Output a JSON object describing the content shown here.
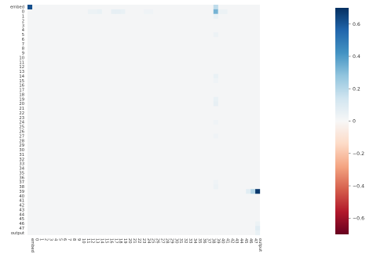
{
  "chart_data": {
    "type": "heatmap",
    "title": "",
    "xlabel": "",
    "ylabel": "",
    "rows": [
      "embed",
      "0",
      "1",
      "2",
      "3",
      "4",
      "5",
      "6",
      "7",
      "8",
      "9",
      "10",
      "11",
      "12",
      "13",
      "14",
      "15",
      "16",
      "17",
      "18",
      "19",
      "20",
      "21",
      "22",
      "23",
      "24",
      "25",
      "26",
      "27",
      "28",
      "29",
      "30",
      "31",
      "32",
      "33",
      "34",
      "35",
      "36",
      "37",
      "38",
      "39",
      "40",
      "41",
      "42",
      "43",
      "44",
      "45",
      "46",
      "47",
      "output"
    ],
    "columns": [
      "embed",
      "0",
      "1",
      "2",
      "3",
      "4",
      "5",
      "6",
      "7",
      "8",
      "9",
      "10",
      "11",
      "12",
      "13",
      "14",
      "15",
      "16",
      "17",
      "18",
      "19",
      "20",
      "21",
      "22",
      "23",
      "24",
      "25",
      "26",
      "27",
      "28",
      "29",
      "30",
      "31",
      "32",
      "33",
      "34",
      "35",
      "36",
      "37",
      "38",
      "39",
      "40",
      "41",
      "42",
      "43",
      "44",
      "45",
      "46",
      "47",
      "output"
    ],
    "colorscale": "RdBu",
    "zlim": [
      -0.7,
      0.7
    ],
    "colorbar_ticks": [
      0.6,
      0.4,
      0.2,
      0,
      -0.2,
      -0.4,
      -0.6
    ],
    "colorbar_tick_labels": [
      "0.6",
      "0.4",
      "0.2",
      "0",
      "−0.2",
      "−0.4",
      "−0.6"
    ],
    "background_value": 0.012,
    "cells": [
      {
        "row": "embed",
        "col": "embed",
        "value": 0.62
      },
      {
        "row": "embed",
        "col": "39",
        "value": 0.18
      },
      {
        "row": "0",
        "col": "39",
        "value": 0.33
      },
      {
        "row": "0",
        "col": "12",
        "value": 0.04
      },
      {
        "row": "0",
        "col": "13",
        "value": 0.04
      },
      {
        "row": "0",
        "col": "14",
        "value": 0.05
      },
      {
        "row": "0",
        "col": "17",
        "value": 0.06
      },
      {
        "row": "0",
        "col": "18",
        "value": 0.06
      },
      {
        "row": "0",
        "col": "19",
        "value": 0.05
      },
      {
        "row": "0",
        "col": "24",
        "value": 0.03
      },
      {
        "row": "0",
        "col": "25",
        "value": 0.03
      },
      {
        "row": "0",
        "col": "40",
        "value": 0.04
      },
      {
        "row": "0",
        "col": "41",
        "value": 0.04
      },
      {
        "row": "1",
        "col": "39",
        "value": 0.05
      },
      {
        "row": "5",
        "col": "39",
        "value": 0.04
      },
      {
        "row": "14",
        "col": "39",
        "value": 0.05
      },
      {
        "row": "15",
        "col": "39",
        "value": 0.03
      },
      {
        "row": "19",
        "col": "39",
        "value": 0.05
      },
      {
        "row": "20",
        "col": "39",
        "value": 0.06
      },
      {
        "row": "24",
        "col": "39",
        "value": 0.03
      },
      {
        "row": "27",
        "col": "39",
        "value": 0.03
      },
      {
        "row": "37",
        "col": "39",
        "value": 0.03
      },
      {
        "row": "38",
        "col": "39",
        "value": 0.04
      },
      {
        "row": "39",
        "col": "46",
        "value": 0.08
      },
      {
        "row": "39",
        "col": "47",
        "value": 0.2
      },
      {
        "row": "39",
        "col": "output",
        "value": 0.68
      },
      {
        "row": "46",
        "col": "output",
        "value": 0.04
      },
      {
        "row": "47",
        "col": "output",
        "value": 0.08
      },
      {
        "row": "output",
        "col": "output",
        "value": 0.05
      }
    ]
  }
}
